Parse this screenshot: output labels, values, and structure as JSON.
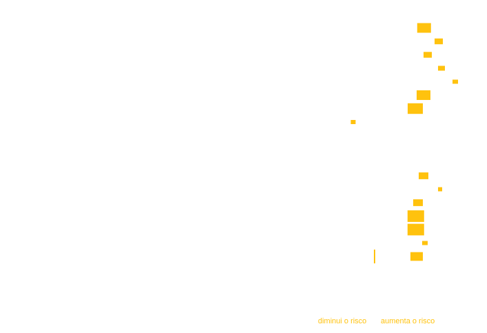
{
  "colors": {
    "marker": "#FFC20E",
    "label": "#FFC20E",
    "background": "#ffffff"
  },
  "axis": {
    "left_label": "diminui o risco",
    "right_label": "aumenta o risco"
  },
  "chart_data": {
    "type": "scatter",
    "marker": "rectangle",
    "description_of_axes": "horizontal position encodes effect on risk",
    "xlabel_left": "diminui o risco",
    "xlabel_right": "aumenta o risco",
    "points": [
      {
        "row": 1,
        "x": 1.72,
        "size": 1.0
      },
      {
        "row": 2,
        "x": 2.25,
        "size": 0.6
      },
      {
        "row": 3,
        "x": 1.85,
        "size": 0.6
      },
      {
        "row": 4,
        "x": 2.35,
        "size": 0.5
      },
      {
        "row": 5,
        "x": 2.85,
        "size": 0.4
      },
      {
        "row": 6,
        "x": 1.7,
        "size": 1.0
      },
      {
        "row": 7,
        "x": 1.4,
        "size": 1.1
      },
      {
        "row": 8,
        "x": -0.85,
        "size": 0.35
      },
      {
        "row": 12,
        "x": 1.7,
        "size": 0.7
      },
      {
        "row": 13,
        "x": 2.3,
        "size": 0.3
      },
      {
        "row": 14,
        "x": 1.5,
        "size": 0.7
      },
      {
        "row": 15,
        "x": 1.42,
        "size": 1.2
      },
      {
        "row": 16,
        "x": 1.42,
        "size": 1.2
      },
      {
        "row": 17,
        "x": 1.75,
        "size": 0.4
      },
      {
        "row": 18,
        "x": 1.45,
        "size": 0.9
      }
    ],
    "reference_line_row": 18
  }
}
